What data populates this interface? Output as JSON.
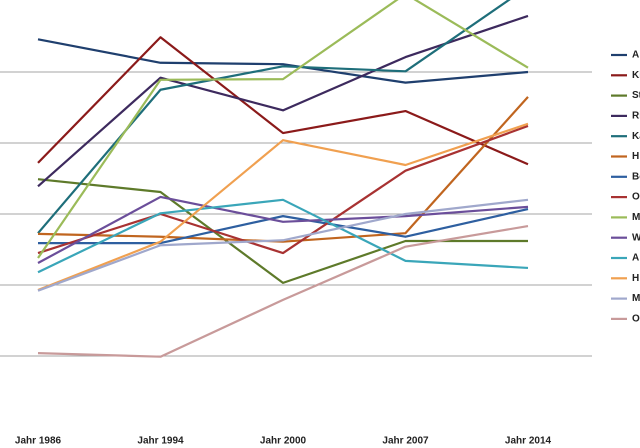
{
  "chart_data": {
    "type": "line",
    "categories": [
      "Jahr 1986",
      "Jahr 1994",
      "Jahr 2000",
      "Jahr 2007",
      "Jahr 2014"
    ],
    "ylim": [
      0,
      6
    ],
    "yticks": [
      1,
      2,
      3,
      4,
      5
    ],
    "grid": true,
    "legend": "right",
    "series": [
      {
        "name": "A",
        "color": "#1f3f6e",
        "values": [
          5.46,
          5.13,
          5.11,
          4.85,
          5.0
        ]
      },
      {
        "name": "Ki",
        "color": "#8b1a1a",
        "values": [
          3.72,
          5.49,
          4.14,
          4.45,
          3.7
        ]
      },
      {
        "name": "St",
        "color": "#5e7a2a",
        "values": [
          3.49,
          3.31,
          2.03,
          2.62,
          2.62
        ]
      },
      {
        "name": "Ri",
        "color": "#3d2a5e",
        "values": [
          3.39,
          4.92,
          4.46,
          5.21,
          5.79
        ]
      },
      {
        "name": "Ka",
        "color": "#1e6e7a",
        "values": [
          2.73,
          4.75,
          5.08,
          5.01,
          6.2
        ]
      },
      {
        "name": "H",
        "color": "#c0651f",
        "values": [
          2.72,
          2.68,
          2.61,
          2.73,
          4.65
        ]
      },
      {
        "name": "Be",
        "color": "#2e5fa0",
        "values": [
          2.59,
          2.59,
          2.97,
          2.68,
          3.07
        ]
      },
      {
        "name": "O",
        "color": "#a83232",
        "values": [
          2.45,
          3.0,
          2.45,
          3.61,
          4.24
        ]
      },
      {
        "name": "M",
        "color": "#9bbb59",
        "values": [
          2.38,
          4.89,
          4.9,
          6.1,
          5.06
        ]
      },
      {
        "name": "W",
        "color": "#6b4e9a",
        "values": [
          2.31,
          3.24,
          2.89,
          2.97,
          3.1
        ]
      },
      {
        "name": "A",
        "color": "#3aa6b9",
        "values": [
          2.18,
          3.01,
          3.2,
          2.34,
          2.24
        ]
      },
      {
        "name": "H",
        "color": "#f0a050",
        "values": [
          1.93,
          2.61,
          4.04,
          3.69,
          4.27
        ]
      },
      {
        "name": "M",
        "color": "#a0a8cc",
        "values": [
          1.92,
          2.56,
          2.63,
          3.0,
          3.2
        ]
      },
      {
        "name": "O",
        "color": "#c89a9a",
        "values": [
          1.04,
          0.99,
          1.79,
          2.54,
          2.83
        ]
      }
    ]
  }
}
